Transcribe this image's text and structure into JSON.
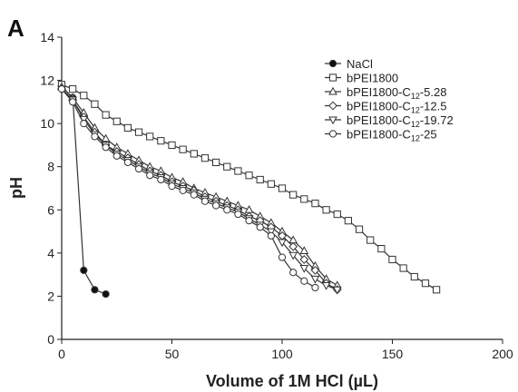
{
  "panel_label": "A",
  "chart_data": {
    "type": "line",
    "title": "",
    "xlabel": "Volume of 1M HCl (µL)",
    "ylabel": "pH",
    "xlim": [
      0,
      200
    ],
    "ylim": [
      0,
      14
    ],
    "xticks": [
      0,
      50,
      100,
      150,
      200
    ],
    "yticks": [
      0,
      2,
      4,
      6,
      8,
      10,
      12,
      14
    ],
    "grid": false,
    "legend_position": "top-right",
    "series": [
      {
        "name": "NaCl",
        "legend_parts": [
          "NaCl",
          "",
          ""
        ],
        "marker": "filled-circle",
        "color": "#111111",
        "x": [
          0,
          5,
          10,
          15,
          20
        ],
        "y": [
          11.7,
          11.2,
          3.2,
          2.3,
          2.1
        ]
      },
      {
        "name": "bPEI1800",
        "legend_parts": [
          "bPEI1800",
          "",
          ""
        ],
        "marker": "open-square",
        "color": "#444444",
        "x": [
          0,
          5,
          10,
          15,
          20,
          25,
          30,
          35,
          40,
          45,
          50,
          55,
          60,
          65,
          70,
          75,
          80,
          85,
          90,
          95,
          100,
          105,
          110,
          115,
          120,
          125,
          130,
          135,
          140,
          145,
          150,
          155,
          160,
          165,
          170
        ],
        "y": [
          11.8,
          11.6,
          11.3,
          10.9,
          10.4,
          10.1,
          9.8,
          9.6,
          9.4,
          9.2,
          9.0,
          8.8,
          8.6,
          8.4,
          8.2,
          8.0,
          7.8,
          7.6,
          7.4,
          7.2,
          7.0,
          6.7,
          6.5,
          6.3,
          6.0,
          5.8,
          5.5,
          5.1,
          4.6,
          4.2,
          3.7,
          3.3,
          2.9,
          2.6,
          2.3
        ]
      },
      {
        "name": "bPEI1800-C12-5.28",
        "legend_parts": [
          "bPEI1800-C",
          "12",
          "-5.28"
        ],
        "marker": "open-triangle-up",
        "color": "#444444",
        "x": [
          0,
          5,
          10,
          15,
          20,
          25,
          30,
          35,
          40,
          45,
          50,
          55,
          60,
          65,
          70,
          75,
          80,
          85,
          90,
          95,
          100,
          105,
          110,
          115,
          120,
          125
        ],
        "y": [
          11.7,
          11.2,
          10.5,
          9.8,
          9.3,
          8.9,
          8.6,
          8.3,
          8.0,
          7.8,
          7.5,
          7.3,
          7.0,
          6.8,
          6.6,
          6.4,
          6.2,
          6.0,
          5.7,
          5.4,
          5.0,
          4.6,
          4.1,
          3.4,
          2.8,
          2.5
        ]
      },
      {
        "name": "bPEI1800-C12-12.5",
        "legend_parts": [
          "bPEI1800-C",
          "12",
          "-12.5"
        ],
        "marker": "open-diamond",
        "color": "#444444",
        "x": [
          0,
          5,
          10,
          15,
          20,
          25,
          30,
          35,
          40,
          45,
          50,
          55,
          60,
          65,
          70,
          75,
          80,
          85,
          90,
          95,
          100,
          105,
          110,
          115,
          120,
          125
        ],
        "y": [
          11.6,
          11.1,
          10.3,
          9.6,
          9.0,
          8.7,
          8.4,
          8.1,
          7.8,
          7.6,
          7.3,
          7.1,
          6.9,
          6.6,
          6.4,
          6.2,
          6.0,
          5.7,
          5.5,
          5.2,
          4.8,
          4.3,
          3.7,
          3.2,
          2.6,
          2.3
        ]
      },
      {
        "name": "bPEI1800-C12-19.72",
        "legend_parts": [
          "bPEI1800-C",
          "12",
          "-19.72"
        ],
        "marker": "open-triangle-down",
        "color": "#444444",
        "x": [
          0,
          5,
          10,
          15,
          20,
          25,
          30,
          35,
          40,
          45,
          50,
          55,
          60,
          65,
          70,
          75,
          80,
          85,
          90,
          95,
          100,
          105,
          110,
          115,
          120,
          125
        ],
        "y": [
          11.6,
          11.1,
          10.2,
          9.5,
          9.0,
          8.6,
          8.3,
          8.0,
          7.7,
          7.5,
          7.2,
          7.0,
          6.8,
          6.5,
          6.3,
          6.1,
          5.9,
          5.6,
          5.3,
          5.0,
          4.5,
          3.9,
          3.3,
          2.8,
          2.5,
          2.3
        ]
      },
      {
        "name": "bPEI1800-C12-25",
        "legend_parts": [
          "bPEI1800-C",
          "12",
          "-25"
        ],
        "marker": "open-circle",
        "color": "#444444",
        "x": [
          0,
          5,
          10,
          15,
          20,
          25,
          30,
          35,
          40,
          45,
          50,
          55,
          60,
          65,
          70,
          75,
          80,
          85,
          90,
          95,
          100,
          105,
          110,
          115
        ],
        "y": [
          11.6,
          11.0,
          10.0,
          9.4,
          8.9,
          8.5,
          8.2,
          7.9,
          7.6,
          7.4,
          7.1,
          6.9,
          6.7,
          6.4,
          6.2,
          6.0,
          5.8,
          5.5,
          5.2,
          4.8,
          3.8,
          3.1,
          2.7,
          2.4
        ]
      }
    ]
  }
}
